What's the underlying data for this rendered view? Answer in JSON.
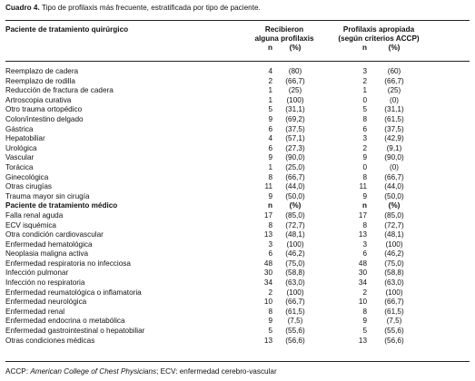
{
  "caption": {
    "label": "Cuadro 4.",
    "text": "Tipo de profilaxis más frecuente, estratificada por tipo de paciente."
  },
  "table": {
    "header": {
      "group": "Paciente de tratamiento quirúrgico",
      "col1": "Recibieron alguna profilaxis",
      "col2": "Profilaxis apropiada (según criterios ACCP)",
      "sub": [
        "n",
        "(%)",
        "n",
        "(%)"
      ]
    },
    "surgical_rows": [
      [
        "Reemplazo de cadera",
        "4",
        "(80)",
        "3",
        "(60)"
      ],
      [
        "Reemplazo de rodilla",
        "2",
        "(66,7)",
        "2",
        "(66,7)"
      ],
      [
        "Reducción de fractura de cadera",
        "1",
        "(25)",
        "1",
        "(25)"
      ],
      [
        "Artroscopia curativa",
        "1",
        "(100)",
        "0",
        "(0)"
      ],
      [
        "Otro trauma ortopédico",
        "5",
        "(31,1)",
        "5",
        "(31,1)"
      ],
      [
        "Colon/intestino delgado",
        "9",
        "(69,2)",
        "8",
        "(61,5)"
      ],
      [
        "Gástrica",
        "6",
        "(37,5)",
        "6",
        "(37,5)"
      ],
      [
        "Hepatobiliar",
        "4",
        "(57,1)",
        "3",
        "(42,9)"
      ],
      [
        "Urológica",
        "6",
        "(27,3)",
        "2",
        "(9,1)"
      ],
      [
        "Vascular",
        "9",
        "(90,0)",
        "9",
        "(90,0)"
      ],
      [
        "Torácica",
        "1",
        "(25,0)",
        "0",
        "(0)"
      ],
      [
        "Ginecológica",
        "8",
        "(66,7)",
        "8",
        "(66,7)"
      ],
      [
        "Otras cirugías",
        "11",
        "(44,0)",
        "11",
        "(44,0)"
      ],
      [
        "Trauma mayor sin cirugía",
        "9",
        "(50,0)",
        "9",
        "(50,0)"
      ]
    ],
    "medical_header": [
      "Paciente de tratamiento médico",
      "n",
      "(%)",
      "n",
      "(%)"
    ],
    "medical_rows": [
      [
        "Falla renal aguda",
        "17",
        "(85,0)",
        "17",
        "(85,0)"
      ],
      [
        "ECV isquémica",
        "8",
        "(72,7)",
        "8",
        "(72,7)"
      ],
      [
        "Otra condición cardiovascular",
        "13",
        "(48,1)",
        "13",
        "(48,1)"
      ],
      [
        "Enfermedad hematológica",
        "3",
        "(100)",
        "3",
        "(100)"
      ],
      [
        "Neoplasia maligna activa",
        "6",
        "(46,2)",
        "6",
        "(46,2)"
      ],
      [
        "Enfermedad respiratoria no infecciosa",
        "48",
        "(75,0)",
        "48",
        "(75,0)"
      ],
      [
        "Infección pulmonar",
        "30",
        "(58,8)",
        "30",
        "(58,8)"
      ],
      [
        "Infección no respiratoria",
        "34",
        "(63,0)",
        "34",
        "(63,0)"
      ],
      [
        "Enfermedad reumatológica o inflamatoria",
        "2",
        "(100)",
        "2",
        "(100)"
      ],
      [
        "Enfermedad neurológica",
        "10",
        "(66,7)",
        "10",
        "(66,7)"
      ],
      [
        "Enfermedad renal",
        "8",
        "(61,5)",
        "8",
        "(61,5)"
      ],
      [
        "Enfermedad endocrina o metabólica",
        "9",
        "(7,5)",
        "9",
        "(7,5)"
      ],
      [
        "Enfermedad gastrointestinal o hepatobiliar",
        "5",
        "(55,6)",
        "5",
        "(55,6)"
      ],
      [
        "Otras condiciones médicas",
        "13",
        "(56,6)",
        "13",
        "(56,6)"
      ]
    ]
  },
  "footnote": {
    "abbr1": "ACCP:",
    "expansion1": "American College of Chest Physicians",
    "sep": ";",
    "rest": "ECV: enfermedad cerebro-vascular"
  }
}
